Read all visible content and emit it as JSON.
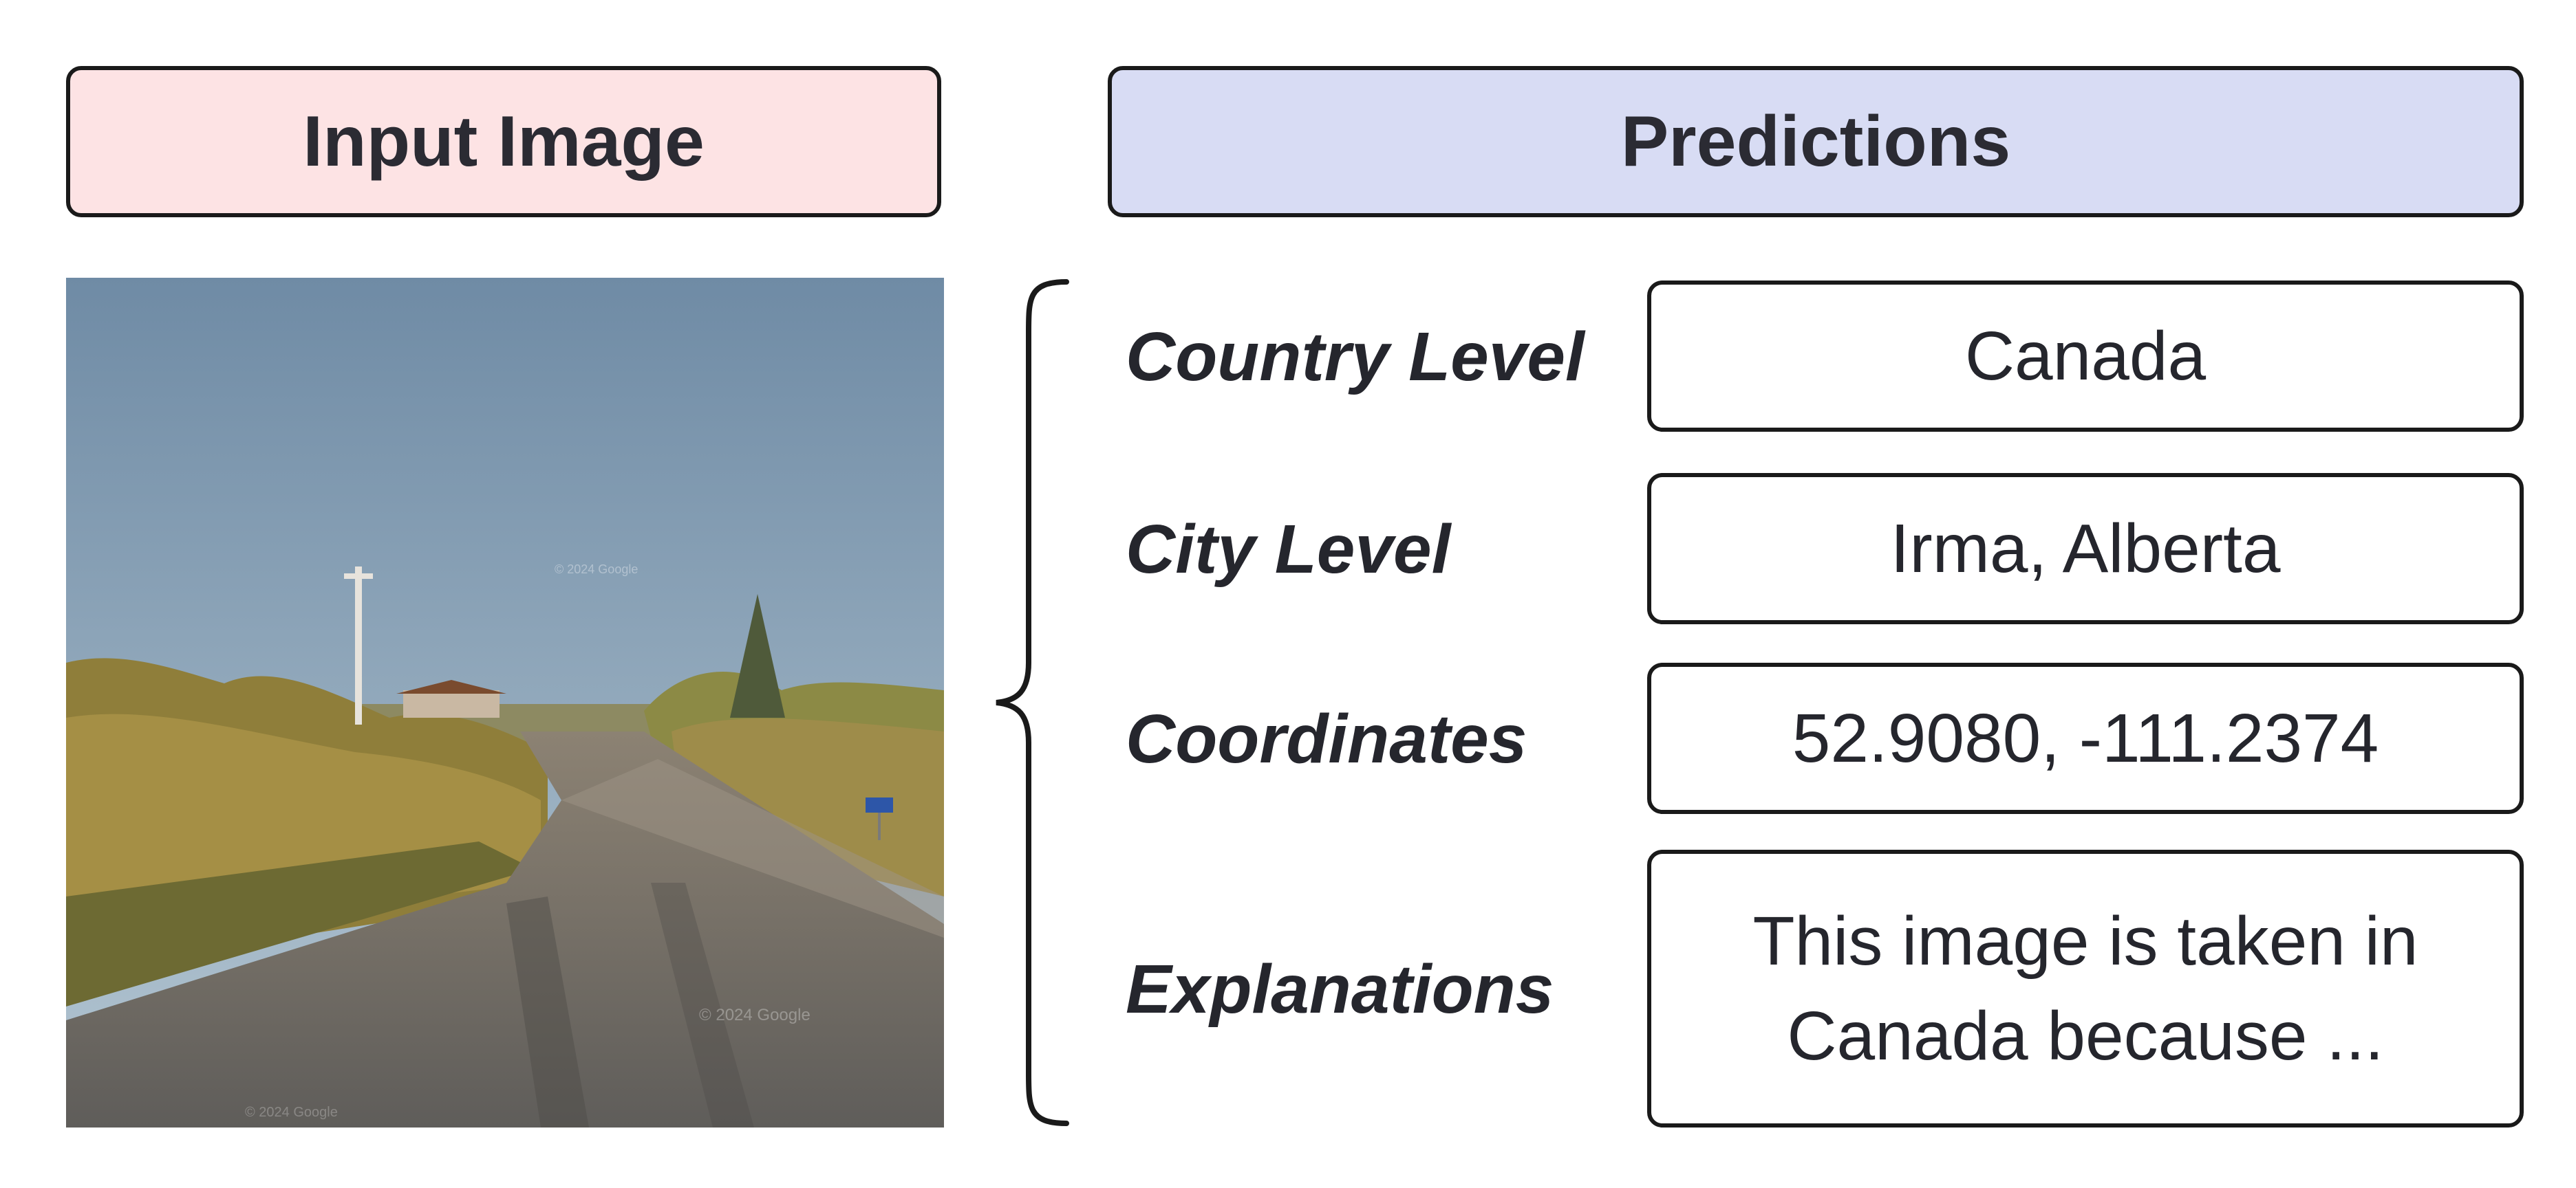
{
  "headers": {
    "input": "Input Image",
    "predictions": "Predictions"
  },
  "image": {
    "watermarks": [
      "© 2024 Google",
      "© 2024 Google",
      "© 2024 Google"
    ],
    "colors": {
      "sky_top": "#6f8ba5",
      "sky_bottom": "#a9bfcf",
      "foliage": "#9a8a3e",
      "road": "#6a6661"
    }
  },
  "rows": [
    {
      "label": "Country Level",
      "value_lines": [
        "Canada"
      ]
    },
    {
      "label": "City Level",
      "value_lines": [
        "Irma, Alberta"
      ]
    },
    {
      "label": "Coordinates",
      "value_lines": [
        "52.9080, -111.2374"
      ]
    },
    {
      "label": "Explanations",
      "value_lines": [
        "This image is taken in",
        "Canada because ..."
      ]
    }
  ],
  "colors": {
    "input_header_bg": "#fde3e4",
    "predictions_header_bg": "#d8dcf4",
    "border": "#1a1a1a"
  }
}
